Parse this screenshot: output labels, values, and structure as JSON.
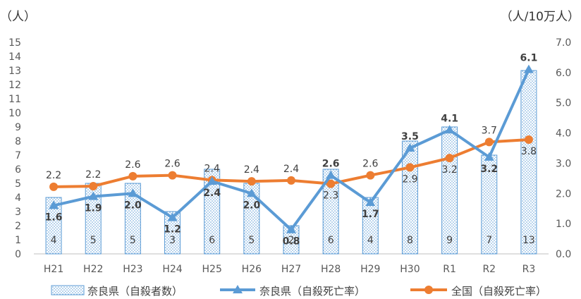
{
  "chart_data": {
    "type": "bar",
    "categories": [
      "H21",
      "H22",
      "H23",
      "H24",
      "H25",
      "H26",
      "H27",
      "H28",
      "H29",
      "H30",
      "R1",
      "R2",
      "R3"
    ],
    "left_axis": {
      "unit": "（人）",
      "ticks": [
        "0",
        "1",
        "2",
        "3",
        "4",
        "5",
        "6",
        "7",
        "8",
        "9",
        "10",
        "11",
        "12",
        "13",
        "14",
        "15"
      ],
      "range": [
        0,
        15
      ]
    },
    "right_axis": {
      "unit": "（人/10万人）",
      "ticks": [
        "0.0",
        "1.0",
        "2.0",
        "3.0",
        "4.0",
        "5.0",
        "6.0",
        "7.0"
      ],
      "range": [
        0,
        7
      ]
    },
    "series": [
      {
        "name": "奈良県（自殺者数）",
        "type": "bar",
        "axis": "left",
        "values": [
          4,
          5,
          5,
          3,
          6,
          5,
          2,
          6,
          4,
          8,
          9,
          7,
          13
        ],
        "labels": [
          "4",
          "5",
          "5",
          "3",
          "6",
          "5",
          "2",
          "6",
          "4",
          "8",
          "9",
          "7",
          "13"
        ],
        "color": "#5b9bd5"
      },
      {
        "name": "奈良県（自殺死亡率）",
        "type": "line",
        "axis": "right",
        "values": [
          1.6,
          1.9,
          2.0,
          1.2,
          2.4,
          2.0,
          0.8,
          2.6,
          1.7,
          3.5,
          4.1,
          3.2,
          6.1
        ],
        "labels": [
          "1.6",
          "1.9",
          "2.0",
          "1.2",
          "2.4",
          "2.0",
          "0.8",
          "2.6",
          "1.7",
          "3.5",
          "4.1",
          "3.2",
          "6.1"
        ],
        "color": "#5b9bd5",
        "marker": "triangle"
      },
      {
        "name": "全国（自殺死亡率）",
        "type": "line",
        "axis": "right",
        "values": [
          2.22,
          2.24,
          2.57,
          2.6,
          2.44,
          2.4,
          2.43,
          2.32,
          2.6,
          2.86,
          3.17,
          3.7,
          3.78
        ],
        "labels": [
          "2.2",
          "2.2",
          "2.6",
          "2.6",
          "2.4",
          "2.4",
          "2.4",
          "2.3",
          "2.6",
          "2.9",
          "3.2",
          "3.7",
          "3.8"
        ],
        "color": "#ed7d31",
        "marker": "circle"
      }
    ]
  }
}
